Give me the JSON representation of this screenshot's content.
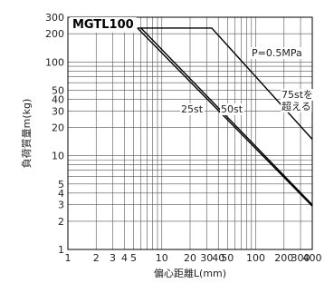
{
  "chart_data": {
    "type": "line",
    "title": "MGTL100",
    "xlabel": "偏心距離L(mm)",
    "ylabel": "負荷質量m(kg)",
    "xscale": "log",
    "yscale": "log",
    "xlim": [
      1,
      400
    ],
    "ylim": [
      1,
      300
    ],
    "grid": true,
    "x_ticks": [
      1,
      2,
      3,
      4,
      5,
      10,
      20,
      30,
      40,
      50,
      100,
      200,
      300,
      400
    ],
    "x_tick_labels": [
      "1",
      "2",
      "3",
      "4",
      "5",
      "10",
      "20",
      "30",
      "40",
      "50",
      "100",
      "200",
      "300",
      "400"
    ],
    "y_ticks": [
      1,
      2,
      3,
      4,
      5,
      10,
      20,
      30,
      40,
      50,
      100,
      200,
      300
    ],
    "y_tick_labels": [
      "1",
      "2",
      "3",
      "4",
      "5",
      "10",
      "20",
      "30",
      "40",
      "50",
      "100",
      "200",
      "300"
    ],
    "annotations": [
      "P=0.5MPa",
      "25st",
      "50st",
      "75stを",
      "超える"
    ],
    "series": [
      {
        "name": "25st",
        "x": [
          5.5,
          400
        ],
        "y": [
          230,
          2.9
        ],
        "color": "#000000",
        "width": 1.4
      },
      {
        "name": "50st",
        "x": [
          6.0,
          400
        ],
        "y": [
          230,
          3.0
        ],
        "color": "#000000",
        "width": 1.4
      },
      {
        "name": "75stを超える",
        "x": [
          5.5,
          34,
          400
        ],
        "y": [
          230,
          230,
          15
        ],
        "color": "#000000",
        "width": 1.4
      }
    ]
  }
}
